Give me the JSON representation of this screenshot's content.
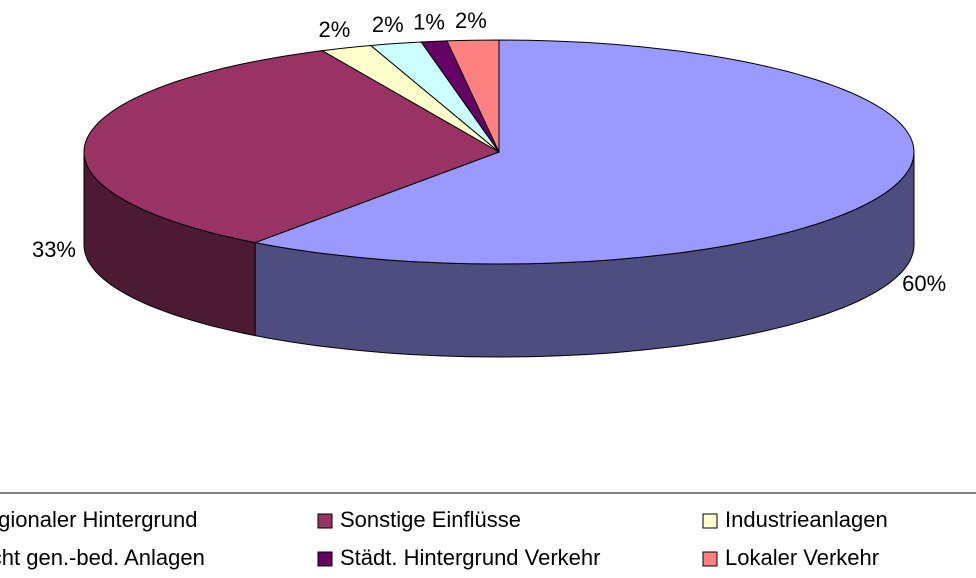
{
  "chart_data": {
    "type": "pie3d",
    "categories": [
      "Regionaler Hintergrund",
      "Sonstige Einflüsse",
      "Industrieanlagen",
      "Nicht gen.-bed. Anlagen",
      "Städt. Hintergrund Verkehr",
      "Lokaler Verkehr"
    ],
    "values": [
      60,
      33,
      2,
      2,
      1,
      2
    ],
    "value_labels": [
      "60%",
      "33%",
      "2%",
      "2%",
      "1%",
      "2%"
    ],
    "colors": [
      "#9999ff",
      "#993366",
      "#ffffcc",
      "#ccffff",
      "#660066",
      "#ff8080"
    ],
    "legend": "bottom"
  }
}
